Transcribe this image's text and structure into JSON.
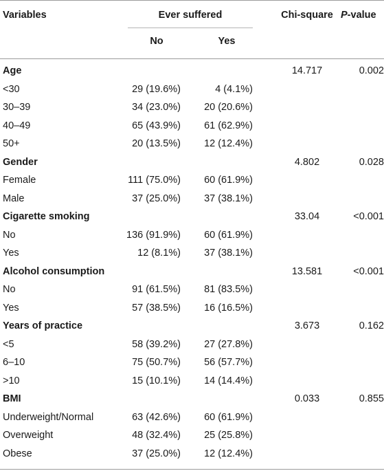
{
  "header": {
    "variables": "Variables",
    "ever_suffered": "Ever suffered",
    "no": "No",
    "yes": "Yes",
    "chi_square": "Chi-square",
    "p_label": "P",
    "p_suffix": "-value"
  },
  "groups": [
    {
      "label": "Age",
      "chi": "14.717",
      "p": "0.002",
      "rows": [
        {
          "label": "<30",
          "no": "29 (19.6%)",
          "yes": "4 (4.1%)"
        },
        {
          "label": "30–39",
          "no": "34 (23.0%)",
          "yes": "20 (20.6%)"
        },
        {
          "label": "40–49",
          "no": "65 (43.9%)",
          "yes": "61 (62.9%)"
        },
        {
          "label": "50+",
          "no": "20 (13.5%)",
          "yes": "12 (12.4%)"
        }
      ]
    },
    {
      "label": "Gender",
      "chi": "4.802",
      "p": "0.028",
      "rows": [
        {
          "label": "Female",
          "no": "111 (75.0%)",
          "yes": "60 (61.9%)"
        },
        {
          "label": "Male",
          "no": "37 (25.0%)",
          "yes": "37 (38.1%)"
        }
      ]
    },
    {
      "label": "Cigarette smoking",
      "chi": "33.04",
      "p": "<0.001",
      "rows": [
        {
          "label": "No",
          "no": "136 (91.9%)",
          "yes": "60 (61.9%)"
        },
        {
          "label": "Yes",
          "no": "12 (8.1%)",
          "yes": "37 (38.1%)"
        }
      ]
    },
    {
      "label": "Alcohol consumption",
      "chi": "13.581",
      "p": "<0.001",
      "rows": [
        {
          "label": "No",
          "no": "91 (61.5%)",
          "yes": "81 (83.5%)"
        },
        {
          "label": "Yes",
          "no": "57 (38.5%)",
          "yes": "16 (16.5%)"
        }
      ]
    },
    {
      "label": "Years of practice",
      "chi": "3.673",
      "p": "0.162",
      "rows": [
        {
          "label": "<5",
          "no": "58 (39.2%)",
          "yes": "27 (27.8%)"
        },
        {
          "label": "6–10",
          "no": "75 (50.7%)",
          "yes": "56 (57.7%)"
        },
        {
          "label": ">10",
          "no": "15 (10.1%)",
          "yes": "14 (14.4%)"
        }
      ]
    },
    {
      "label": "BMI",
      "chi": "0.033",
      "p": "0.855",
      "rows": [
        {
          "label": "Underweight/Normal",
          "no": "63 (42.6%)",
          "yes": "60 (61.9%)"
        },
        {
          "label": "Overweight",
          "no": "48 (32.4%)",
          "yes": "25 (25.8%)"
        },
        {
          "label": "Obese",
          "no": "37 (25.0%)",
          "yes": "12 (12.4%)"
        }
      ]
    }
  ]
}
